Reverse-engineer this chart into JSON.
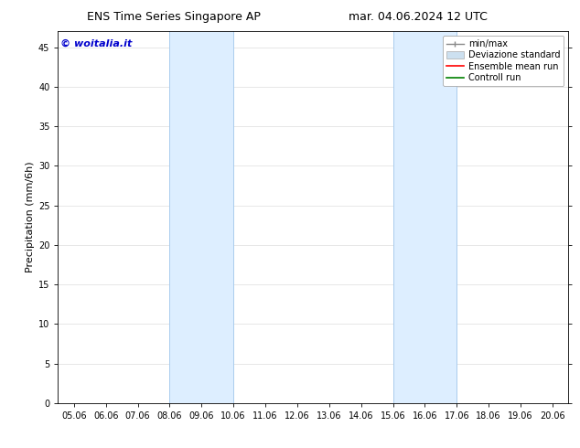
{
  "title_left": "ENS Time Series Singapore AP",
  "title_right": "mar. 04.06.2024 12 UTC",
  "ylabel": "Precipitation (mm/6h)",
  "watermark": "© woitalia.it",
  "watermark_color": "#0000cc",
  "xtick_labels": [
    "05.06",
    "06.06",
    "07.06",
    "08.06",
    "09.06",
    "10.06",
    "11.06",
    "12.06",
    "13.06",
    "14.06",
    "15.06",
    "16.06",
    "17.06",
    "18.06",
    "19.06",
    "20.06"
  ],
  "xtick_values": [
    0,
    1,
    2,
    3,
    4,
    5,
    6,
    7,
    8,
    9,
    10,
    11,
    12,
    13,
    14,
    15
  ],
  "xlim": [
    -0.5,
    15.5
  ],
  "ylim": [
    0,
    47
  ],
  "ytick_values": [
    0,
    5,
    10,
    15,
    20,
    25,
    30,
    35,
    40,
    45
  ],
  "shaded_regions": [
    {
      "xstart": 3,
      "xend": 5,
      "color": "#ddeeff"
    },
    {
      "xstart": 10,
      "xend": 12,
      "color": "#ddeeff"
    }
  ],
  "shaded_border_color": "#aaccee",
  "legend_entries": [
    {
      "label": "min/max",
      "color": "#aaaaaa",
      "type": "errorbar"
    },
    {
      "label": "Deviazione standard",
      "color": "#ccddee",
      "type": "fill"
    },
    {
      "label": "Ensemble mean run",
      "color": "red",
      "type": "line"
    },
    {
      "label": "Controll run",
      "color": "green",
      "type": "line"
    }
  ],
  "background_color": "#ffffff",
  "grid_color": "#dddddd",
  "title_fontsize": 9,
  "axis_label_fontsize": 8,
  "tick_fontsize": 7,
  "legend_fontsize": 7,
  "watermark_fontsize": 8
}
